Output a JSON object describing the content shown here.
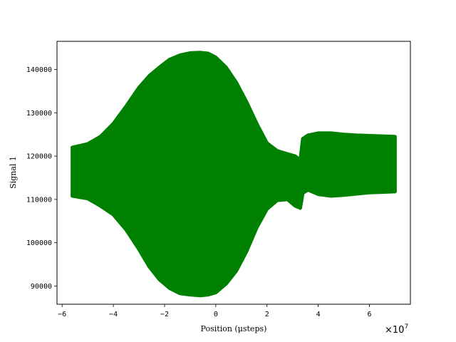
{
  "chart_data": {
    "type": "scatter",
    "title": "",
    "xlabel": "Position (μsteps)",
    "ylabel": "Signal 1",
    "x_offset_label": "×10",
    "x_offset_exponent": "7",
    "xlim": [
      -6.2,
      7.6
    ],
    "ylim": [
      85800,
      146500
    ],
    "xticks": [
      -6,
      -4,
      -2,
      0,
      2,
      4,
      6
    ],
    "yticks": [
      90000,
      100000,
      110000,
      120000,
      130000,
      140000
    ],
    "grid": false,
    "color": "#008000",
    "series": [
      {
        "x": [
          -5.6,
          -5.0,
          -4.5,
          -4.0,
          -3.5,
          -3.0,
          -2.6,
          -2.2,
          -1.8,
          -1.4,
          -1.0,
          -0.6,
          -0.3,
          0.0,
          0.4,
          0.8,
          1.2,
          1.6,
          2.0,
          2.4,
          2.8,
          3.1,
          3.3,
          3.4,
          3.6,
          4.0,
          4.5,
          5.0,
          5.5,
          6.0,
          6.5,
          7.0
        ],
        "upper": [
          122000,
          122800,
          124500,
          127500,
          131500,
          135800,
          138500,
          140500,
          142300,
          143300,
          143800,
          143900,
          143700,
          142800,
          140500,
          137000,
          132500,
          127500,
          123000,
          121200,
          120500,
          120000,
          119000,
          124000,
          124800,
          125300,
          125300,
          125000,
          124800,
          124700,
          124600,
          124500
        ],
        "lower": [
          110800,
          110200,
          108500,
          106500,
          103000,
          98500,
          94500,
          91500,
          89500,
          88300,
          88000,
          87800,
          88000,
          88500,
          90500,
          93500,
          98000,
          103500,
          107800,
          109800,
          110000,
          108500,
          108000,
          111500,
          112200,
          111200,
          110800,
          111000,
          111300,
          111600,
          111700,
          111800
        ]
      }
    ]
  }
}
